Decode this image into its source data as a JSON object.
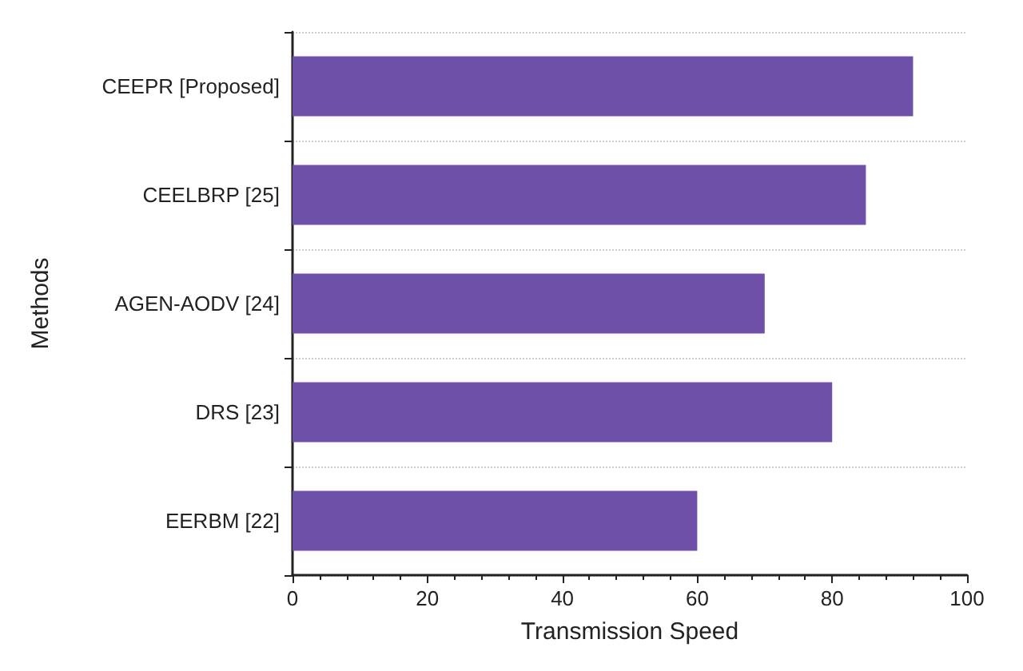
{
  "chart_data": {
    "type": "bar",
    "orientation": "horizontal",
    "xlabel": "Transmission Speed",
    "ylabel": "Methods",
    "categories": [
      "CEEPR [Proposed]",
      "CEELBRP [25]",
      "AGEN-AODV [24]",
      "DRS [23]",
      "EERBM [22]"
    ],
    "values": [
      92,
      85,
      70,
      80,
      60
    ],
    "color": "#6e50a8",
    "xlim": [
      0,
      100
    ],
    "xticks": [
      0,
      20,
      40,
      60,
      80,
      100
    ],
    "grid": "y"
  }
}
